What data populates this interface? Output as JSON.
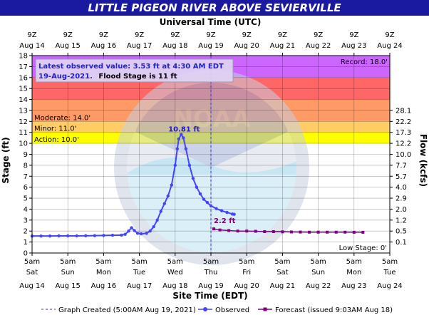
{
  "header": {
    "title": "LITTLE PIGEON RIVER ABOVE SEVIERVILLE"
  },
  "top_axis": {
    "title": "Universal Time (UTC)",
    "tick_time": "9Z"
  },
  "bottom_axis": {
    "title": "Site Time (EDT)",
    "tick_time": "5am"
  },
  "left_axis": {
    "title": "Stage (ft)"
  },
  "right_axis": {
    "title": "Flow (kcfs)"
  },
  "info_box": {
    "line1": "Latest observed value: 3.53 ft at 4:30 AM EDT",
    "line2_date": "19-Aug-2021.",
    "line2_rest": "Flood Stage is 11 ft"
  },
  "watermark": {
    "noaa": "NOAA",
    "arc_text": "NATIONAL OCEANIC AND ATMOSPHERIC ADMINISTRATION",
    "bottom_arc": "U.S. DEPARTMENT OF COMMERCE"
  },
  "colors": {
    "header_bg": "#1a1aa0",
    "record": "#cc66ff",
    "major": "#ff6666",
    "moderate": "#ff9966",
    "minor": "#ffcc66",
    "action": "#ffff00",
    "observed": "#4444ff",
    "forecast": "#800080",
    "created_line": "#3333cc",
    "info_text": "#2222cc",
    "info_box_bg": "#e0d4f4"
  },
  "chart_data": {
    "type": "line",
    "title": "LITTLE PIGEON RIVER ABOVE SEVIERVILLE",
    "xlabel": "Site Time (EDT)",
    "ylabel": "Stage (ft)",
    "y2label": "Flow (kcfs)",
    "x_top_label": "Universal Time (UTC)",
    "ylim": [
      0,
      18
    ],
    "xlim": [
      "2021-08-14 05:00",
      "2021-08-24 05:00"
    ],
    "grid": true,
    "x_ticks_bottom": [
      {
        "day": "Sat",
        "date": "Aug 14"
      },
      {
        "day": "Sun",
        "date": "Aug 15"
      },
      {
        "day": "Mon",
        "date": "Aug 16"
      },
      {
        "day": "Tue",
        "date": "Aug 17"
      },
      {
        "day": "Wed",
        "date": "Aug 18"
      },
      {
        "day": "Thu",
        "date": "Aug 19"
      },
      {
        "day": "Fri",
        "date": "Aug 20"
      },
      {
        "day": "Sat",
        "date": "Aug 21"
      },
      {
        "day": "Sun",
        "date": "Aug 22"
      },
      {
        "day": "Mon",
        "date": "Aug 23"
      },
      {
        "day": "Tue",
        "date": "Aug 24"
      }
    ],
    "x_ticks_top": [
      "Aug 14",
      "Aug 15",
      "Aug 16",
      "Aug 17",
      "Aug 18",
      "Aug 19",
      "Aug 20",
      "Aug 21",
      "Aug 22",
      "Aug 23",
      "Aug 24"
    ],
    "y_ticks": [
      0,
      1,
      2,
      3,
      4,
      5,
      6,
      7,
      8,
      9,
      10,
      11,
      12,
      13,
      14,
      15,
      16,
      17,
      18
    ],
    "flow_ticks": [
      {
        "stage": 1,
        "label": "0.1"
      },
      {
        "stage": 2,
        "label": "0.5"
      },
      {
        "stage": 3,
        "label": "1.2"
      },
      {
        "stage": 4,
        "label": "2.0"
      },
      {
        "stage": 5,
        "label": "2.9"
      },
      {
        "stage": 6,
        "label": "4.0"
      },
      {
        "stage": 7,
        "label": "5.7"
      },
      {
        "stage": 8,
        "label": "7.7"
      },
      {
        "stage": 9,
        "label": "10.0"
      },
      {
        "stage": 10,
        "label": "12.2"
      },
      {
        "stage": 11,
        "label": "17.3"
      },
      {
        "stage": 12,
        "label": "22.2"
      },
      {
        "stage": 13,
        "label": "28.1"
      }
    ],
    "flood_categories": [
      {
        "name": "Record",
        "label": "Record: 18.0'",
        "from": 16,
        "to": 18,
        "color": "#cc66ff",
        "label_pos": "right"
      },
      {
        "name": "Major",
        "label": "",
        "from": 14,
        "to": 16,
        "color": "#ff6666",
        "label_pos": "left"
      },
      {
        "name": "Moderate",
        "label": "Moderate: 14.0'",
        "from": 12,
        "to": 14,
        "color": "#ff9966",
        "label_pos": "left"
      },
      {
        "name": "Minor",
        "label": "Minor: 11.0'",
        "from": 11,
        "to": 12,
        "color": "#ffcc66",
        "label_pos": "left"
      },
      {
        "name": "Action",
        "label": "Action: 10.0'",
        "from": 10,
        "to": 11,
        "color": "#ffff00",
        "label_pos": "left"
      }
    ],
    "low_stage_label": "Low Stage: 0'",
    "peak_label": "10.81 ft",
    "peak": {
      "day": 4.17,
      "stage": 10.81
    },
    "forecast_start_label": "2.2 ft",
    "graph_created_day": 5.0,
    "series": [
      {
        "name": "Observed",
        "points": [
          [
            0.0,
            1.55
          ],
          [
            0.25,
            1.55
          ],
          [
            0.5,
            1.55
          ],
          [
            0.75,
            1.56
          ],
          [
            1.0,
            1.56
          ],
          [
            1.25,
            1.56
          ],
          [
            1.5,
            1.57
          ],
          [
            1.75,
            1.58
          ],
          [
            2.0,
            1.6
          ],
          [
            2.25,
            1.62
          ],
          [
            2.5,
            1.63
          ],
          [
            2.6,
            1.7
          ],
          [
            2.7,
            2.0
          ],
          [
            2.78,
            2.3
          ],
          [
            2.86,
            2.05
          ],
          [
            2.95,
            1.8
          ],
          [
            3.05,
            1.75
          ],
          [
            3.2,
            1.8
          ],
          [
            3.3,
            2.0
          ],
          [
            3.4,
            2.4
          ],
          [
            3.5,
            3.0
          ],
          [
            3.6,
            3.8
          ],
          [
            3.7,
            4.5
          ],
          [
            3.8,
            5.2
          ],
          [
            3.9,
            6.2
          ],
          [
            4.0,
            8.0
          ],
          [
            4.06,
            9.5
          ],
          [
            4.1,
            10.4
          ],
          [
            4.17,
            10.81
          ],
          [
            4.23,
            10.5
          ],
          [
            4.3,
            9.5
          ],
          [
            4.4,
            8.0
          ],
          [
            4.5,
            6.8
          ],
          [
            4.6,
            6.0
          ],
          [
            4.7,
            5.4
          ],
          [
            4.8,
            4.9
          ],
          [
            4.9,
            4.6
          ],
          [
            5.0,
            4.3
          ],
          [
            5.15,
            4.05
          ],
          [
            5.3,
            3.85
          ],
          [
            5.45,
            3.7
          ],
          [
            5.6,
            3.55
          ],
          [
            5.65,
            3.53
          ]
        ]
      },
      {
        "name": "Forecast",
        "points": [
          [
            5.08,
            2.2
          ],
          [
            5.25,
            2.1
          ],
          [
            5.5,
            2.05
          ],
          [
            5.75,
            2.0
          ],
          [
            6.0,
            2.0
          ],
          [
            6.25,
            1.98
          ],
          [
            6.5,
            1.95
          ],
          [
            6.75,
            1.95
          ],
          [
            7.0,
            1.93
          ],
          [
            7.25,
            1.92
          ],
          [
            7.5,
            1.91
          ],
          [
            7.75,
            1.9
          ],
          [
            8.0,
            1.9
          ],
          [
            8.25,
            1.9
          ],
          [
            8.5,
            1.9
          ],
          [
            8.75,
            1.9
          ],
          [
            9.0,
            1.89
          ],
          [
            9.25,
            1.89
          ]
        ]
      }
    ]
  },
  "legend": {
    "created": "Graph Created (5:00AM Aug 19, 2021)",
    "observed": "Observed",
    "forecast": "Forecast (issued 9:03AM Aug 18)"
  }
}
